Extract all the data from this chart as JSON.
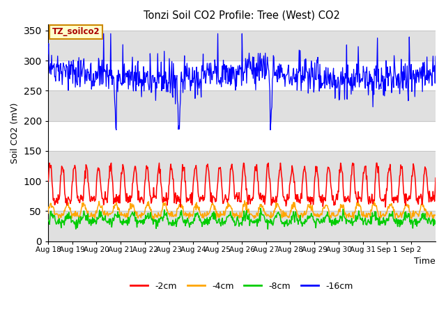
{
  "title": "Tonzi Soil CO2 Profile: Tree (West) CO2",
  "ylabel": "Soil CO2 (mV)",
  "xlabel": "Time",
  "annotation": "TZ_soilco2",
  "ylim": [
    0,
    360
  ],
  "yticks": [
    0,
    50,
    100,
    150,
    200,
    250,
    300,
    350
  ],
  "legend_labels": [
    "-2cm",
    "-4cm",
    "-8cm",
    "-16cm"
  ],
  "legend_colors": [
    "#ff0000",
    "#ffa500",
    "#00cc00",
    "#0000ff"
  ],
  "line_colors": {
    "2cm": "#ff0000",
    "4cm": "#ffa500",
    "8cm": "#00cc00",
    "16cm": "#0000ff"
  },
  "n_days": 16,
  "samples_per_day": 48,
  "x_tick_labels": [
    "Aug 18",
    "Aug 19",
    "Aug 20",
    "Aug 21",
    "Aug 22",
    "Aug 23",
    "Aug 24",
    "Aug 25",
    "Aug 26",
    "Aug 27",
    "Aug 28",
    "Aug 29",
    "Aug 30",
    "Aug 31",
    "Sep 1",
    "Sep 2"
  ],
  "bg_band_color": "#e0e0e0",
  "annotation_bg": "#ffffcc",
  "annotation_border": "#cc8800",
  "figsize": [
    6.4,
    4.8
  ],
  "dpi": 100
}
